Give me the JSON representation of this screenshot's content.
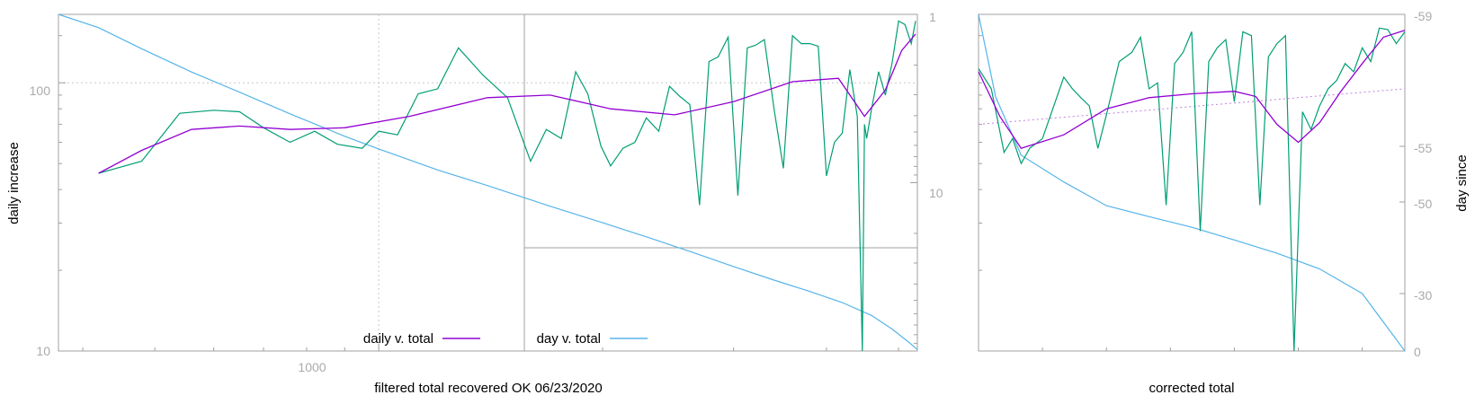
{
  "colors": {
    "daily": "#009e73",
    "smooth": "#9400d3",
    "day": "#56b4e9",
    "frame": "#a0a0a0",
    "grid": "#c8c8c8",
    "trend": "#c080e0"
  },
  "chart_data": [
    {
      "type": "line",
      "panel": "left",
      "title": "",
      "xlabel": "filtered total recovered OK 06/23/2020",
      "ylabel": "daily increase",
      "x_scale": "log",
      "y_scale": "log",
      "xlim": [
        371,
        5300
      ],
      "ylim": [
        10,
        180
      ],
      "y2lim_reversed": [
        1,
        100
      ],
      "y2_scale": "log",
      "x_tick_labels": [
        "1000"
      ],
      "y_tick_labels": [
        "10",
        "100"
      ],
      "y2_tick_labels": [
        "1",
        "10"
      ],
      "grid": true,
      "legend_position": "bottom-center",
      "series": [
        {
          "name": "daily v. total",
          "role": "smoothed fit",
          "color_key": "smooth",
          "x": [
            420,
            480,
            560,
            650,
            760,
            900,
            1100,
            1400,
            1700,
            2050,
            2500,
            3000,
            3600,
            4150,
            4500,
            4800,
            5050,
            5270
          ],
          "y": [
            46,
            56,
            67,
            69,
            67,
            68,
            75,
            88,
            90,
            80,
            76,
            85,
            101,
            104,
            75,
            94,
            132,
            152
          ]
        },
        {
          "name": "",
          "role": "raw daily increase",
          "color_key": "daily",
          "x": [
            420,
            480,
            540,
            600,
            650,
            700,
            760,
            820,
            880,
            950,
            1000,
            1060,
            1130,
            1200,
            1280,
            1380,
            1490,
            1600,
            1680,
            1760,
            1840,
            1910,
            1990,
            2050,
            2130,
            2210,
            2290,
            2380,
            2460,
            2540,
            2620,
            2700,
            2780,
            2860,
            2950,
            3040,
            3130,
            3210,
            3300,
            3400,
            3500,
            3600,
            3700,
            3800,
            3900,
            4000,
            4100,
            4200,
            4300,
            4400,
            4470,
            4500,
            4530,
            4600,
            4700,
            4800,
            4900,
            5000,
            5100,
            5200,
            5270
          ],
          "y": [
            46,
            51,
            77,
            79,
            78,
            68,
            60,
            66,
            59,
            57,
            66,
            64,
            91,
            95,
            135,
            107,
            88,
            51,
            67,
            62,
            110,
            91,
            58,
            49,
            57,
            60,
            74,
            66,
            97,
            89,
            83,
            35,
            120,
            125,
            148,
            38,
            135,
            138,
            145,
            80,
            48,
            150,
            140,
            140,
            137,
            45,
            60,
            65,
            112,
            75,
            10,
            70,
            62,
            80,
            110,
            90,
            118,
            170,
            165,
            140,
            170
          ]
        },
        {
          "name": "day v. total",
          "role": "day number (right axis)",
          "color_key": "day",
          "x": [
            371,
            420,
            480,
            560,
            650,
            760,
            900,
            1000,
            1200,
            1400,
            1700,
            2000,
            2300,
            2600,
            3000,
            3400,
            3800,
            4200,
            4600,
            4900,
            5150,
            5300
          ],
          "y": [
            1.0,
            1.2,
            1.6,
            2.2,
            2.9,
            3.9,
            5.3,
            6.3,
            8.4,
            10.4,
            13.8,
            17.3,
            21.1,
            25.3,
            31.5,
            37.9,
            44.3,
            51.5,
            61.5,
            74.0,
            88.0,
            98.0
          ]
        }
      ]
    },
    {
      "type": "line",
      "panel": "right",
      "title": "",
      "xlabel": "corrected total",
      "ylabel": "day since",
      "y2_tick_labels": [
        "-59",
        "-55",
        "-50",
        "-30",
        "0"
      ],
      "grid": false,
      "series": [
        {
          "name": "",
          "role": "smoothed fit",
          "color_key": "smooth",
          "x": [
            0.0,
            0.05,
            0.1,
            0.2,
            0.3,
            0.4,
            0.5,
            0.6,
            0.65,
            0.7,
            0.75,
            0.8,
            0.85,
            0.9,
            0.95,
            1.0
          ],
          "y": [
            110,
            75,
            57,
            64,
            80,
            88,
            91,
            93,
            89,
            70,
            60,
            71,
            93,
            118,
            148,
            157
          ]
        },
        {
          "name": "",
          "role": "raw daily increase",
          "color_key": "daily",
          "x": [
            0.0,
            0.03,
            0.06,
            0.08,
            0.1,
            0.12,
            0.15,
            0.2,
            0.22,
            0.24,
            0.26,
            0.28,
            0.3,
            0.33,
            0.36,
            0.38,
            0.4,
            0.42,
            0.44,
            0.46,
            0.48,
            0.5,
            0.52,
            0.54,
            0.56,
            0.58,
            0.6,
            0.62,
            0.64,
            0.66,
            0.68,
            0.7,
            0.72,
            0.74,
            0.76,
            0.78,
            0.8,
            0.82,
            0.84,
            0.86,
            0.88,
            0.9,
            0.92,
            0.94,
            0.96,
            0.98,
            1.0
          ],
          "y": [
            113,
            95,
            55,
            62,
            50,
            57,
            62,
            105,
            95,
            88,
            82,
            57,
            76,
            120,
            130,
            148,
            95,
            100,
            35,
            118,
            130,
            155,
            28,
            120,
            135,
            145,
            85,
            155,
            150,
            35,
            125,
            140,
            150,
            10,
            78,
            67,
            82,
            95,
            102,
            118,
            110,
            135,
            120,
            160,
            158,
            140,
            155
          ]
        },
        {
          "name": "",
          "role": "day number (right axis)",
          "color_key": "day",
          "x": [
            0.0,
            0.04,
            0.1,
            0.2,
            0.3,
            0.4,
            0.5,
            0.6,
            0.7,
            0.8,
            0.9,
            1.0
          ],
          "y": [
            -59,
            -56.5,
            -54.2,
            -51.8,
            -49.2,
            -46.8,
            -44.5,
            -41.7,
            -38.8,
            -35.4,
            -30.0,
            0
          ]
        },
        {
          "name": "",
          "role": "dotted trend",
          "color_key": "trend",
          "x": [
            0.0,
            1.0
          ],
          "y": [
            70,
            95
          ]
        }
      ]
    }
  ]
}
